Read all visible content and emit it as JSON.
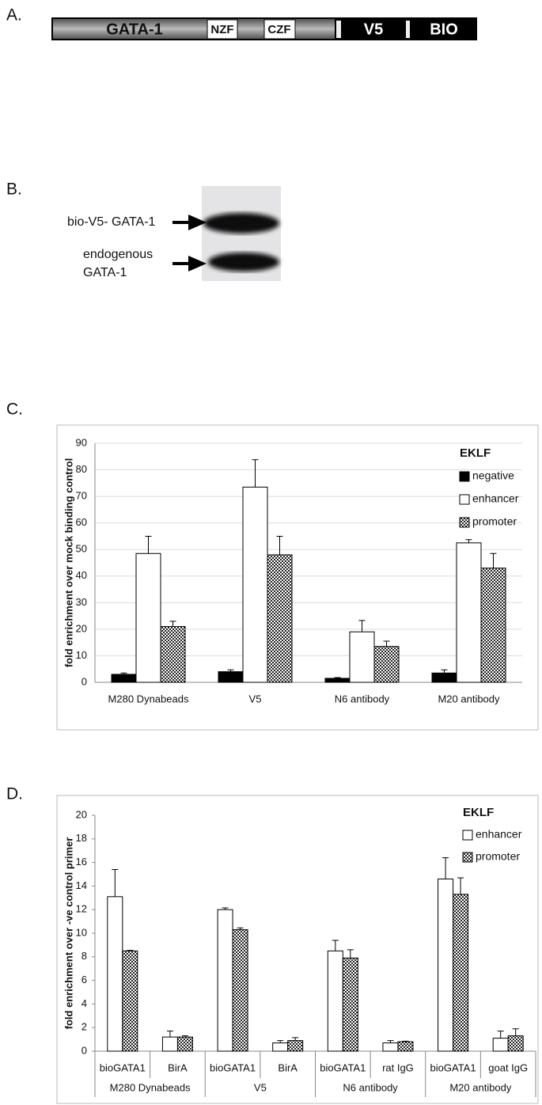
{
  "panels": {
    "a": {
      "label": "A.",
      "domains": [
        "GATA-1",
        "NZF",
        "CZF",
        "V5",
        "BIO"
      ]
    },
    "b": {
      "label": "B.",
      "bands": [
        "bio-V5- GATA-1",
        "endogenous",
        "GATA-1"
      ]
    },
    "c": {
      "label": "C."
    },
    "d": {
      "label": "D."
    }
  },
  "chart_data": [
    {
      "type": "bar",
      "ylabel": "fold enrichment over mock binding control",
      "categories": [
        "M280 Dynabeads",
        "V5",
        "N6 antibody",
        "M20 antibody"
      ],
      "legend_title": "EKLF",
      "series": [
        {
          "name": "negative",
          "color": "#000000",
          "values": [
            3,
            4,
            1.5,
            3.5
          ],
          "errors": [
            0.5,
            0.7,
            0.3,
            1.2
          ]
        },
        {
          "name": "enhancer",
          "color": "#ffffff",
          "values": [
            48.5,
            73.5,
            19,
            52.5
          ],
          "errors": [
            6.5,
            10.3,
            4.3,
            1.2
          ]
        },
        {
          "name": "promoter",
          "color": "#333333",
          "pattern": "checker",
          "values": [
            21,
            48,
            13.5,
            43
          ],
          "errors": [
            2,
            7,
            2,
            5.5
          ]
        }
      ],
      "ylim": [
        0,
        90
      ],
      "yticks": [
        0,
        10,
        20,
        30,
        40,
        50,
        60,
        70,
        80,
        90
      ],
      "grid": true,
      "legend": "top-right"
    },
    {
      "type": "bar",
      "ylabel": "fold enrichment over -ve control primer",
      "categories": [
        "bioGATA1",
        "BirA",
        "bioGATA1",
        "BirA",
        "bioGATA1",
        "rat IgG",
        "bioGATA1",
        "goat IgG"
      ],
      "groups": [
        "M280 Dynabeads",
        "V5",
        "N6 antibody",
        "M20 antibody"
      ],
      "legend_title": "EKLF",
      "series": [
        {
          "name": "enhancer",
          "color": "#ffffff",
          "values": [
            13.1,
            1.2,
            12,
            0.7,
            8.5,
            0.7,
            14.6,
            1.1
          ],
          "errors": [
            2.3,
            0.5,
            0.15,
            0.2,
            0.9,
            0.2,
            1.8,
            0.6
          ]
        },
        {
          "name": "promoter",
          "color": "#333333",
          "pattern": "checker",
          "values": [
            8.5,
            1.2,
            10.3,
            0.9,
            7.9,
            0.8,
            13.3,
            1.3
          ],
          "errors": [
            0.05,
            0.1,
            0.15,
            0.25,
            0.7,
            0.05,
            1.4,
            0.6
          ]
        }
      ],
      "ylim": [
        0,
        20
      ],
      "yticks": [
        0,
        2,
        4,
        6,
        8,
        10,
        12,
        14,
        16,
        18,
        20
      ],
      "grid": false,
      "legend": "top-right"
    }
  ]
}
